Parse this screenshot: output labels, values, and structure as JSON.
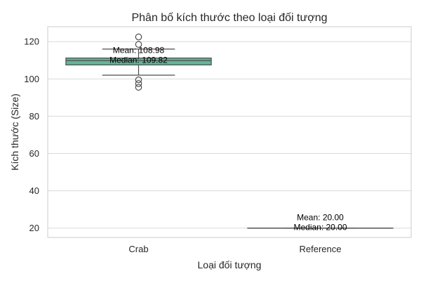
{
  "chart_data": {
    "type": "box",
    "title": "Phân bố kích thước theo loại đối tượng",
    "xlabel": "Loại đối tượng",
    "ylabel": "Kích thước (Size)",
    "ylim": [
      15,
      128
    ],
    "yticks": [
      20,
      40,
      60,
      80,
      100,
      120
    ],
    "grid": true,
    "categories": [
      "Crab",
      "Reference"
    ],
    "boxes": [
      {
        "category": "Crab",
        "q1": 107.5,
        "median": 109.82,
        "q3": 111.2,
        "whisker_low": 102,
        "whisker_high": 116,
        "mean": 108.98,
        "fliers": [
          95.5,
          97.5,
          99.5,
          118.5,
          122.5
        ],
        "color": "#66b39a",
        "mean_label": "Mean: 108.98",
        "median_label": "Median: 109.82"
      },
      {
        "category": "Reference",
        "q1": 20,
        "median": 20,
        "q3": 20,
        "whisker_low": 20,
        "whisker_high": 20,
        "mean": 20,
        "fliers": [],
        "color": "#fc8d62",
        "mean_label": "Mean: 20.00",
        "median_label": "Median: 20.00"
      }
    ]
  }
}
